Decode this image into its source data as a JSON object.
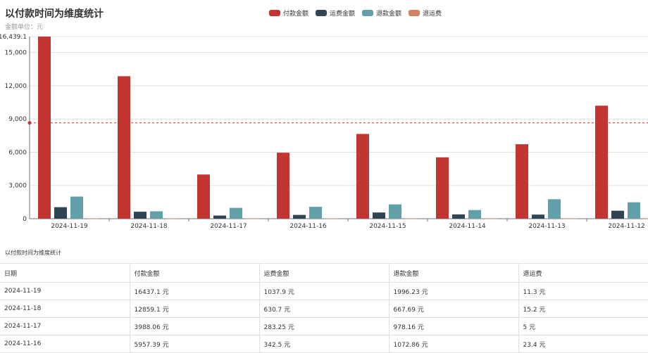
{
  "chart_data": {
    "type": "bar",
    "title": "以付款时间为维度统计",
    "subtitle": "金额单位：元",
    "categories": [
      "2024-11-19",
      "2024-11-18",
      "2024-11-17",
      "2024-11-16",
      "2024-11-15",
      "2024-11-14",
      "2024-11-13",
      "2024-11-12"
    ],
    "series": [
      {
        "name": "付款金额",
        "color": "#c23531",
        "values": [
          16437.1,
          12859.1,
          3988.06,
          5957.39,
          7650,
          5540,
          6720,
          10200
        ]
      },
      {
        "name": "运费金额",
        "color": "#2f4554",
        "values": [
          1037.9,
          630.7,
          283.25,
          342.5,
          560,
          390,
          370,
          720
        ]
      },
      {
        "name": "退款金额",
        "color": "#61a0a8",
        "values": [
          1996.23,
          667.69,
          978.16,
          1072.86,
          1290,
          780,
          1760,
          1480
        ]
      },
      {
        "name": "退运费",
        "color": "#d48265",
        "values": [
          11.3,
          15.2,
          5,
          23.4,
          8,
          6,
          4,
          5
        ]
      }
    ],
    "y_ticks": [
      0,
      3000,
      6000,
      9000,
      12000,
      15000
    ],
    "y_tick_labels": [
      "0",
      "3,000",
      "6,000",
      "9,000",
      "12,000",
      "15,000"
    ],
    "ylim": [
      0,
      16439.1
    ],
    "y_max_label": "16,439.1",
    "average_line": 8650,
    "grid": true,
    "legend_position": "top-center"
  },
  "table": {
    "caption": "以付款时间为维度统计",
    "columns": [
      "日期",
      "付款金额",
      "运费金额",
      "退款金额",
      "退运费"
    ],
    "rows": [
      [
        "2024-11-19",
        "16437.1 元",
        "1037.9 元",
        "1996.23 元",
        "11.3 元"
      ],
      [
        "2024-11-18",
        "12859.1 元",
        "630.7 元",
        "667.69 元",
        "15.2 元"
      ],
      [
        "2024-11-17",
        "3988.06 元",
        "283.25 元",
        "978.16 元",
        "5 元"
      ],
      [
        "2024-11-16",
        "5957.39 元",
        "342.5 元",
        "1072.86 元",
        "23.4 元"
      ]
    ]
  }
}
